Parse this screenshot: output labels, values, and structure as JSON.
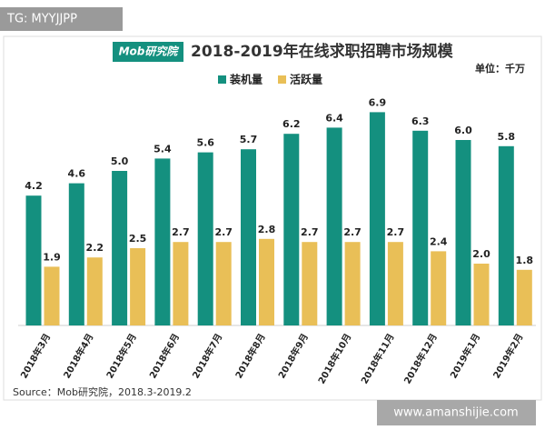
{
  "watermark_top": "TG: MYYJJPP",
  "watermark_bottom": "www.amanshijie.com",
  "chart_data": {
    "type": "bar",
    "logo": "Mob研究院",
    "title": "2018-2019年在线求职招聘市场规模",
    "unit": "单位：千万",
    "source": "Source：Mob研究院，2018.3-2019.2",
    "categories": [
      "2018年3月",
      "2018年4月",
      "2018年5月",
      "2018年6月",
      "2018年7月",
      "2018年8月",
      "2018年9月",
      "2018年10月",
      "2018年11月",
      "2018年12月",
      "2019年1月",
      "2019年2月"
    ],
    "series": [
      {
        "name": "装机量",
        "color": "#14907f",
        "values": [
          4.2,
          4.6,
          5,
          5.4,
          5.6,
          5.7,
          6.2,
          6.4,
          6.9,
          6.3,
          6,
          5.8
        ],
        "value_labels": [
          "4.2",
          "4.6",
          "5.0",
          "5.4",
          "5.6",
          "5.7",
          "6.2",
          "6.4",
          "6.9",
          "6.3",
          "6.0",
          "5.8"
        ]
      },
      {
        "name": "活跃量",
        "color": "#e9bf57",
        "values": [
          1.9,
          2.2,
          2.5,
          2.7,
          2.7,
          2.8,
          2.7,
          2.7,
          2.7,
          2.4,
          2,
          1.8
        ],
        "value_labels": [
          "1.9",
          "2.2",
          "2.5",
          "2.7",
          "2.7",
          "2.8",
          "2.7",
          "2.7",
          "2.7",
          "2.4",
          "2.0",
          "1.8"
        ]
      }
    ]
  }
}
